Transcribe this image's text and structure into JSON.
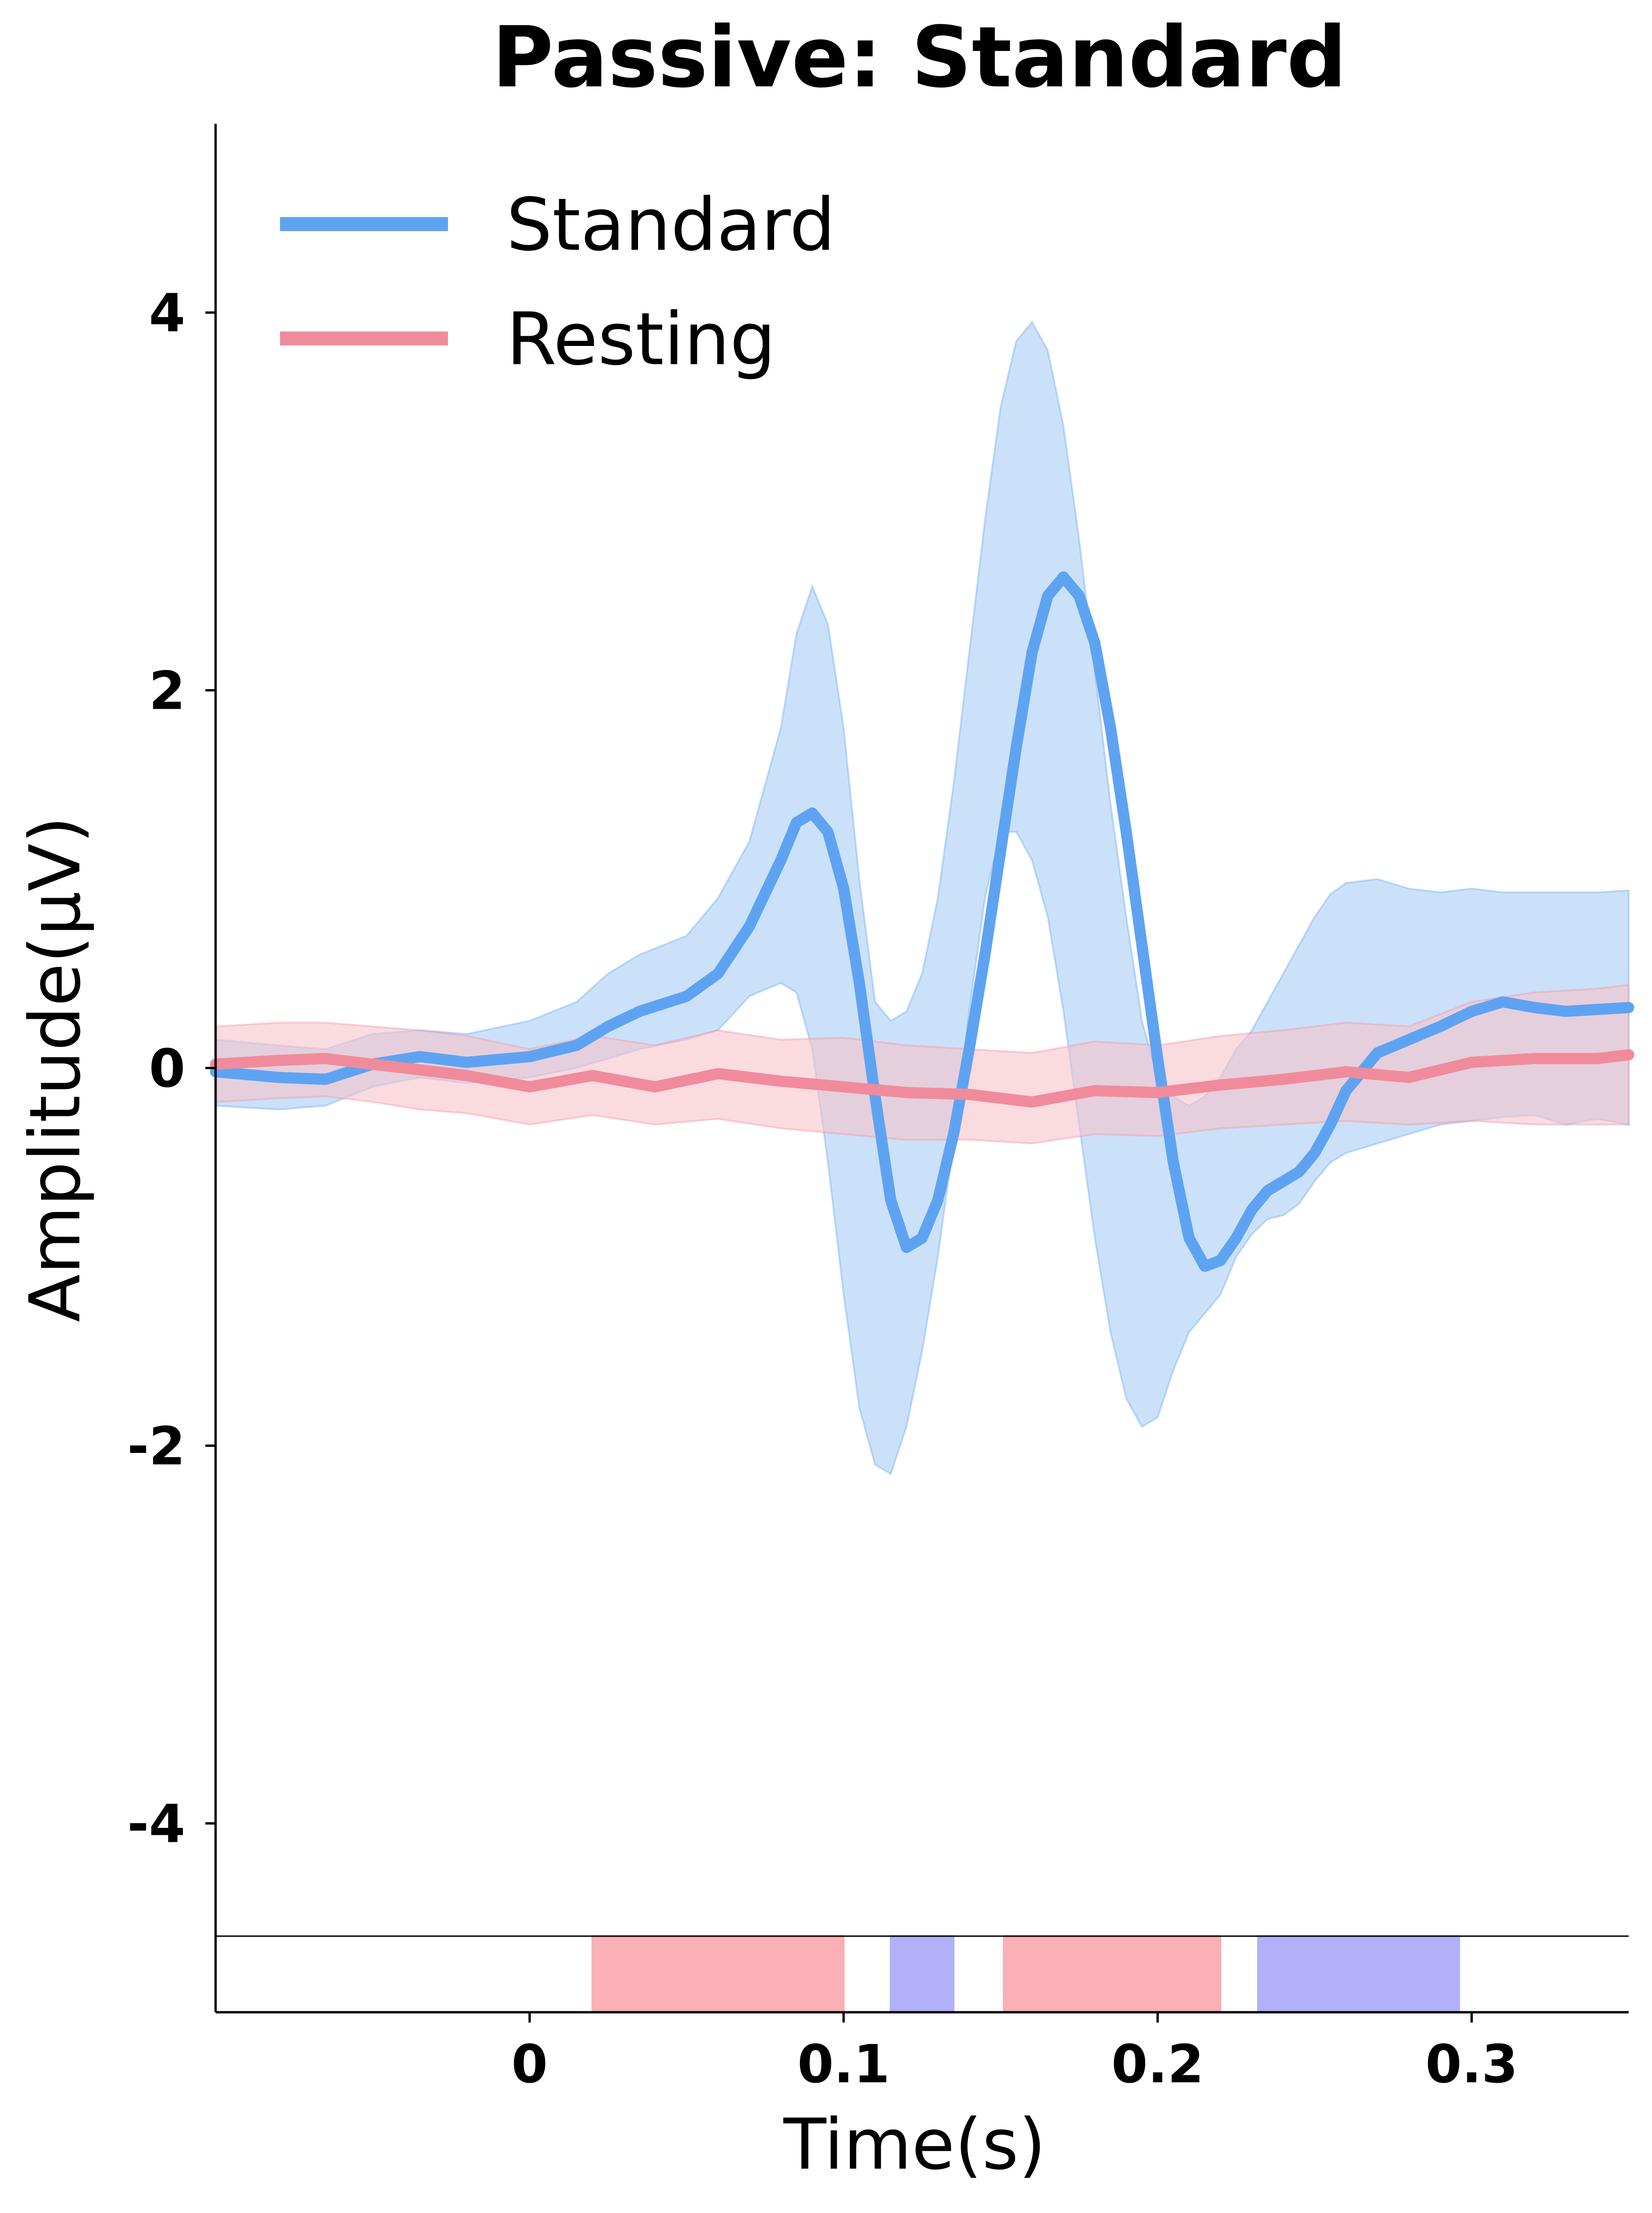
{
  "chart_data": {
    "type": "line",
    "title": "Passive: Standard",
    "xlabel": "Time(s)",
    "ylabel": "Amplitude(μV)",
    "xlim": [
      -0.1,
      0.35
    ],
    "ylim": [
      -5,
      5
    ],
    "xticks": [
      {
        "value": 0,
        "label": "0"
      },
      {
        "value": 0.1,
        "label": "0.1"
      },
      {
        "value": 0.2,
        "label": "0.2"
      },
      {
        "value": 0.3,
        "label": "0.3"
      }
    ],
    "yticks": [
      {
        "value": 4,
        "label": "4"
      },
      {
        "value": 2,
        "label": "2"
      },
      {
        "value": 0,
        "label": "0"
      },
      {
        "value": -2,
        "label": "-2"
      },
      {
        "value": -4,
        "label": "-4"
      }
    ],
    "grid": false,
    "legend_position": "top-left",
    "series": [
      {
        "name": "Standard",
        "color": "#5ea3f2",
        "band_color": "#a9cdf5",
        "x": [
          -0.1,
          -0.08,
          -0.065,
          -0.05,
          -0.035,
          -0.02,
          0.0,
          0.015,
          0.025,
          0.035,
          0.05,
          0.06,
          0.07,
          0.08,
          0.085,
          0.09,
          0.095,
          0.1,
          0.105,
          0.11,
          0.115,
          0.12,
          0.125,
          0.13,
          0.135,
          0.14,
          0.145,
          0.15,
          0.155,
          0.16,
          0.165,
          0.17,
          0.175,
          0.18,
          0.185,
          0.19,
          0.195,
          0.2,
          0.205,
          0.21,
          0.215,
          0.22,
          0.225,
          0.23,
          0.235,
          0.24,
          0.245,
          0.25,
          0.255,
          0.26,
          0.27,
          0.28,
          0.29,
          0.3,
          0.31,
          0.32,
          0.33,
          0.34,
          0.35
        ],
        "mean": [
          -0.02,
          -0.05,
          -0.06,
          0.02,
          0.06,
          0.03,
          0.06,
          0.12,
          0.22,
          0.3,
          0.38,
          0.5,
          0.75,
          1.1,
          1.3,
          1.35,
          1.25,
          0.95,
          0.45,
          -0.15,
          -0.7,
          -0.95,
          -0.9,
          -0.7,
          -0.35,
          0.1,
          0.6,
          1.15,
          1.7,
          2.2,
          2.5,
          2.6,
          2.5,
          2.25,
          1.8,
          1.25,
          0.65,
          0.05,
          -0.5,
          -0.9,
          -1.05,
          -1.02,
          -0.9,
          -0.75,
          -0.65,
          -0.6,
          -0.55,
          -0.45,
          -0.3,
          -0.12,
          0.08,
          0.15,
          0.22,
          0.3,
          0.35,
          0.32,
          0.3,
          0.31,
          0.32
        ],
        "lower": [
          -0.2,
          -0.22,
          -0.2,
          -0.1,
          -0.05,
          -0.08,
          -0.05,
          0.0,
          0.05,
          0.1,
          0.15,
          0.2,
          0.38,
          0.45,
          0.4,
          0.1,
          -0.5,
          -1.2,
          -1.8,
          -2.1,
          -2.15,
          -1.9,
          -1.5,
          -1.0,
          -0.4,
          0.3,
          0.9,
          1.25,
          1.25,
          1.1,
          0.8,
          0.3,
          -0.3,
          -0.9,
          -1.4,
          -1.75,
          -1.9,
          -1.85,
          -1.6,
          -1.4,
          -1.3,
          -1.2,
          -1.0,
          -0.88,
          -0.8,
          -0.78,
          -0.72,
          -0.6,
          -0.5,
          -0.45,
          -0.4,
          -0.35,
          -0.3,
          -0.28,
          -0.26,
          -0.25,
          -0.3,
          -0.27,
          -0.3
        ],
        "upper": [
          0.15,
          0.12,
          0.1,
          0.18,
          0.2,
          0.18,
          0.25,
          0.35,
          0.5,
          0.6,
          0.7,
          0.9,
          1.2,
          1.8,
          2.3,
          2.55,
          2.35,
          1.8,
          1.0,
          0.35,
          0.25,
          0.3,
          0.5,
          0.9,
          1.5,
          2.2,
          2.9,
          3.5,
          3.85,
          3.95,
          3.8,
          3.4,
          2.8,
          2.1,
          1.4,
          0.8,
          0.25,
          -0.05,
          -0.15,
          -0.2,
          -0.15,
          -0.05,
          0.1,
          0.2,
          0.35,
          0.5,
          0.65,
          0.8,
          0.92,
          0.98,
          1.0,
          0.95,
          0.93,
          0.95,
          0.93,
          0.93,
          0.93,
          0.93,
          0.94
        ]
      },
      {
        "name": "Resting",
        "color": "#f08b9b",
        "band_color": "#f7c3ca",
        "x": [
          -0.1,
          -0.08,
          -0.065,
          -0.05,
          -0.035,
          -0.02,
          0.0,
          0.02,
          0.04,
          0.06,
          0.08,
          0.1,
          0.12,
          0.14,
          0.16,
          0.18,
          0.2,
          0.22,
          0.24,
          0.26,
          0.28,
          0.3,
          0.32,
          0.34,
          0.35
        ],
        "mean": [
          0.02,
          0.04,
          0.05,
          0.02,
          -0.01,
          -0.04,
          -0.1,
          -0.04,
          -0.1,
          -0.03,
          -0.07,
          -0.1,
          -0.13,
          -0.14,
          -0.18,
          -0.12,
          -0.13,
          -0.09,
          -0.06,
          -0.02,
          -0.05,
          0.03,
          0.05,
          0.05,
          0.07
        ],
        "lower": [
          -0.18,
          -0.16,
          -0.15,
          -0.18,
          -0.22,
          -0.24,
          -0.3,
          -0.25,
          -0.3,
          -0.27,
          -0.32,
          -0.35,
          -0.38,
          -0.38,
          -0.4,
          -0.35,
          -0.36,
          -0.32,
          -0.3,
          -0.28,
          -0.3,
          -0.28,
          -0.3,
          -0.3,
          -0.3
        ],
        "upper": [
          0.22,
          0.24,
          0.24,
          0.22,
          0.2,
          0.17,
          0.1,
          0.17,
          0.12,
          0.2,
          0.15,
          0.16,
          0.12,
          0.1,
          0.08,
          0.14,
          0.12,
          0.17,
          0.2,
          0.24,
          0.22,
          0.35,
          0.4,
          0.42,
          0.44
        ]
      }
    ],
    "significance_bars": [
      {
        "start": 0.02,
        "end": 0.1,
        "color": "#fab0b5"
      },
      {
        "start": 0.115,
        "end": 0.135,
        "color": "#b1b0f8"
      },
      {
        "start": 0.151,
        "end": 0.22,
        "color": "#fab0b5"
      },
      {
        "start": 0.232,
        "end": 0.296,
        "color": "#b1b0f8"
      }
    ]
  }
}
